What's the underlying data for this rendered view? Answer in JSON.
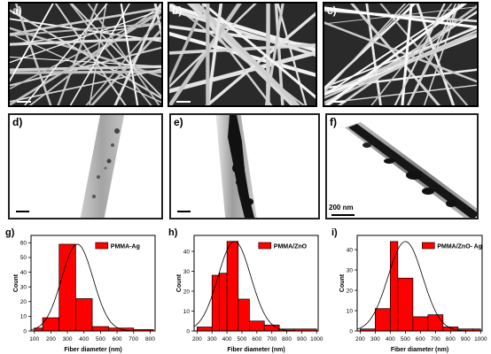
{
  "sem_panels": [
    {
      "label": "a)"
    },
    {
      "label": "b)"
    },
    {
      "label": "c)"
    }
  ],
  "tem_panels": [
    {
      "label": "d)",
      "scale_text": ""
    },
    {
      "label": "e)",
      "scale_text": ""
    },
    {
      "label": "f)",
      "scale_text": "200 nm"
    }
  ],
  "colors": {
    "bar": "#ff0000",
    "curve": "#000000"
  },
  "chart_data": [
    {
      "type": "bar",
      "panel_label": "g)",
      "legend": "PMMA-Ag",
      "xlabel": "Fiber diameter (nm)",
      "ylabel": "Count",
      "bin_edges": [
        100,
        150,
        250,
        350,
        450,
        550,
        700,
        820
      ],
      "values": [
        2,
        9,
        59,
        22,
        3,
        2,
        1
      ],
      "xticks": [
        100,
        200,
        300,
        400,
        500,
        600,
        700,
        800
      ],
      "yticks": [
        0,
        10,
        20,
        30,
        40,
        50,
        60
      ],
      "xlim": [
        80,
        830
      ],
      "ylim": [
        0,
        65
      ],
      "fit": {
        "mean": 360,
        "sd": 95,
        "peak": 59
      }
    },
    {
      "type": "bar",
      "panel_label": "h)",
      "legend": "PMMA/ZnO",
      "xlabel": "Fiber diameter (nm)",
      "ylabel": "Count",
      "bin_edges": [
        200,
        300,
        350,
        400,
        475,
        550,
        650,
        750,
        850,
        1000
      ],
      "values": [
        2,
        28,
        29,
        45,
        16,
        5,
        3,
        1,
        1
      ],
      "xticks": [
        200,
        300,
        400,
        500,
        600,
        700,
        800,
        900,
        1000
      ],
      "yticks": [
        0,
        10,
        20,
        30,
        40
      ],
      "xlim": [
        180,
        1010
      ],
      "ylim": [
        0,
        48
      ],
      "fit": {
        "mean": 450,
        "sd": 110,
        "peak": 45
      }
    },
    {
      "type": "bar",
      "panel_label": "i)",
      "legend": "PMMA/ZnO- Ag",
      "xlabel": "Fiber diameter (nm)",
      "ylabel": "Count",
      "bin_edges": [
        200,
        300,
        400,
        450,
        550,
        650,
        750,
        850,
        950,
        1000
      ],
      "values": [
        1,
        11,
        44,
        26,
        7,
        8,
        2,
        1,
        1
      ],
      "xticks": [
        200,
        300,
        400,
        500,
        600,
        700,
        800,
        900,
        1000
      ],
      "yticks": [
        0,
        10,
        20,
        30,
        40
      ],
      "xlim": [
        180,
        1010
      ],
      "ylim": [
        0,
        47
      ],
      "fit": {
        "mean": 500,
        "sd": 115,
        "peak": 44
      }
    }
  ]
}
